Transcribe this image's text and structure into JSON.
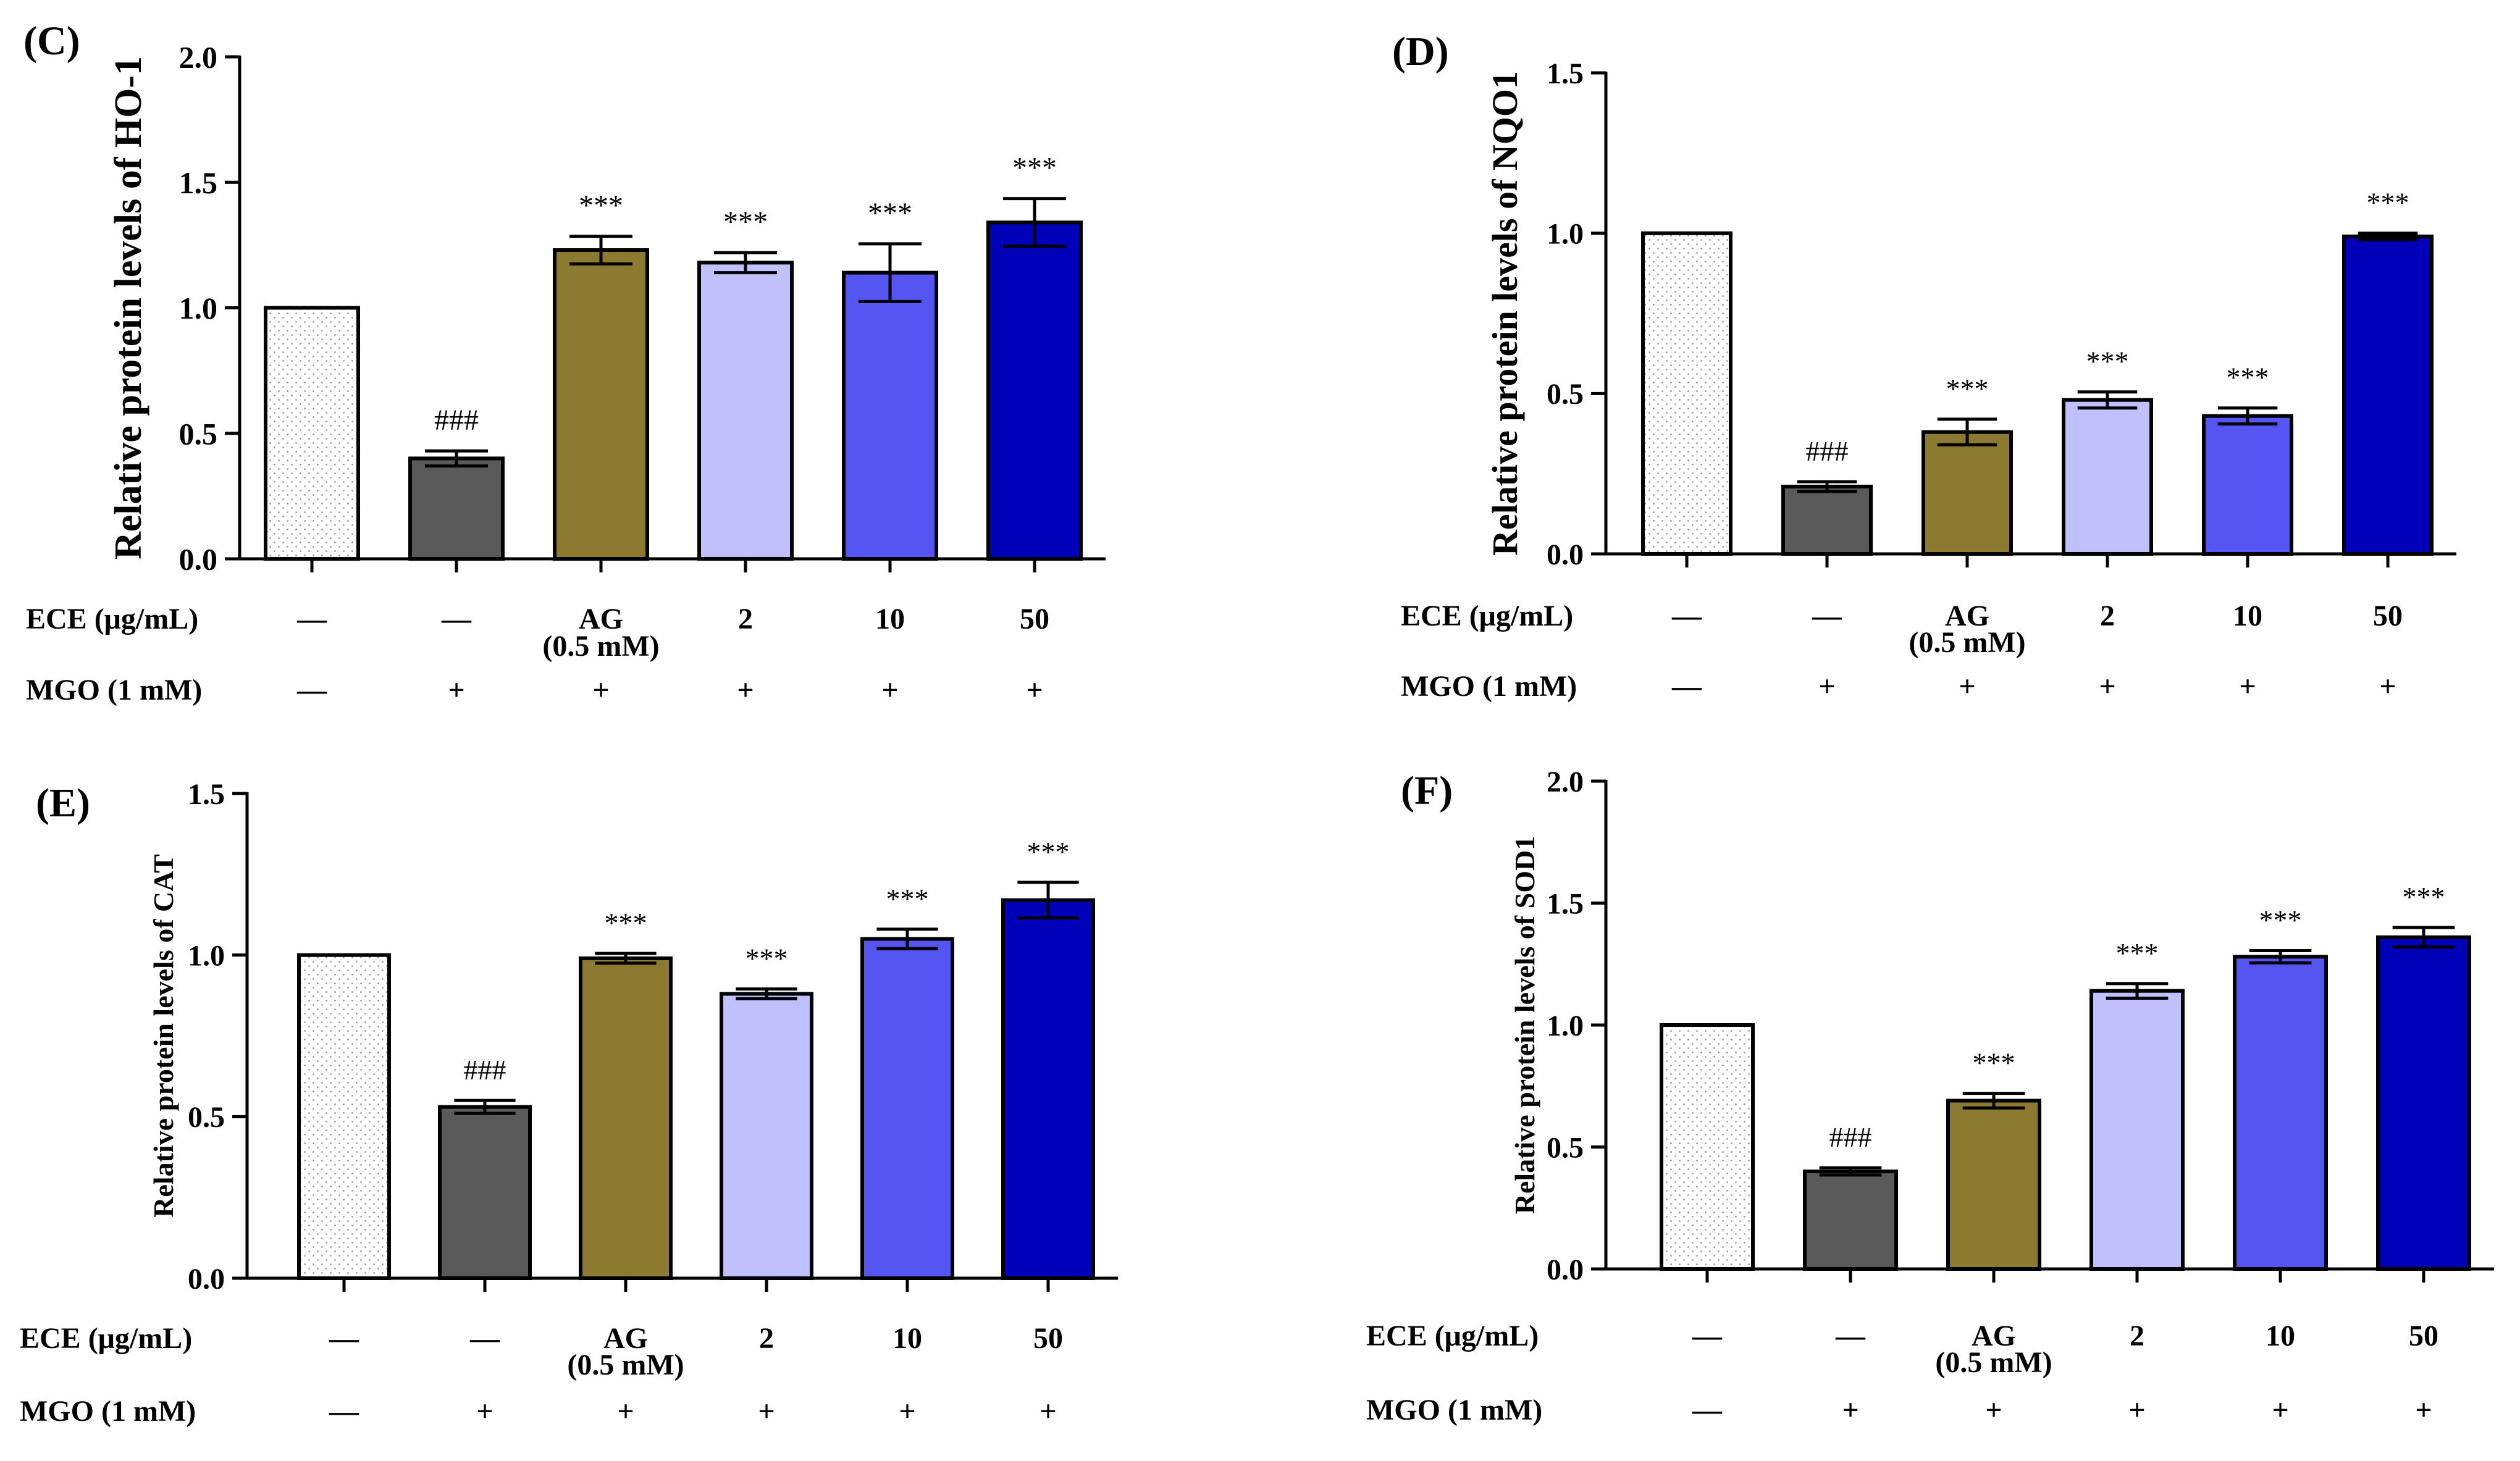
{
  "chart_data": [
    {
      "panel": "(C)",
      "type": "bar",
      "ylabel": "Relative protein levels of HO-1",
      "ylim": [
        0,
        2.0
      ],
      "yticks": [
        "0.0",
        "0.5",
        "1.0",
        "1.5",
        "2.0"
      ],
      "values": [
        1.0,
        0.4,
        1.23,
        1.18,
        1.14,
        1.34
      ],
      "errors": [
        0,
        0.03,
        0.055,
        0.04,
        0.115,
        0.095
      ],
      "annotations": [
        "",
        "###",
        "***",
        "***",
        "***",
        "***"
      ],
      "ece_label": "ECE (μg/mL)",
      "ece": [
        "—",
        "—",
        "AG\n(0.5 mM)",
        "2",
        "10",
        "50"
      ],
      "mgo_label": "MGO (1 mM)",
      "mgo": [
        "—",
        "+",
        "+",
        "+",
        "+",
        "+"
      ]
    },
    {
      "panel": "(D)",
      "type": "bar",
      "ylabel": "Relative protein levels of NQO1",
      "ylim": [
        0,
        1.5
      ],
      "yticks": [
        "0.0",
        "0.5",
        "1.0",
        "1.5"
      ],
      "values": [
        1.0,
        0.21,
        0.38,
        0.48,
        0.43,
        0.99
      ],
      "errors": [
        0,
        0.015,
        0.04,
        0.025,
        0.025,
        0.01
      ],
      "annotations": [
        "",
        "###",
        "***",
        "***",
        "***",
        "***"
      ],
      "ece_label": "ECE (μg/mL)",
      "ece": [
        "—",
        "—",
        "AG\n(0.5 mM)",
        "2",
        "10",
        "50"
      ],
      "mgo_label": "MGO (1 mM)",
      "mgo": [
        "—",
        "+",
        "+",
        "+",
        "+",
        "+"
      ]
    },
    {
      "panel": "(E)",
      "type": "bar",
      "ylabel": "Relative protein levels of CAT",
      "ylim": [
        0,
        1.5
      ],
      "yticks": [
        "0.0",
        "0.5",
        "1.0",
        "1.5"
      ],
      "values": [
        1.0,
        0.53,
        0.99,
        0.88,
        1.05,
        1.17
      ],
      "errors": [
        0,
        0.02,
        0.015,
        0.015,
        0.03,
        0.055
      ],
      "annotations": [
        "",
        "###",
        "***",
        "***",
        "***",
        "***"
      ],
      "ece_label": "ECE (μg/mL)",
      "ece": [
        "—",
        "—",
        "AG\n(0.5 mM)",
        "2",
        "10",
        "50"
      ],
      "mgo_label": "MGO (1 mM)",
      "mgo": [
        "—",
        "+",
        "+",
        "+",
        "+",
        "+"
      ]
    },
    {
      "panel": "(F)",
      "type": "bar",
      "ylabel": "Relative protein levels of SOD1",
      "ylim": [
        0,
        2.0
      ],
      "yticks": [
        "0.0",
        "0.5",
        "1.0",
        "1.5",
        "2.0"
      ],
      "values": [
        1.0,
        0.4,
        0.69,
        1.14,
        1.28,
        1.36
      ],
      "errors": [
        0,
        0.015,
        0.03,
        0.03,
        0.025,
        0.04
      ],
      "annotations": [
        "",
        "###",
        "***",
        "***",
        "***",
        "***"
      ],
      "ece_label": "ECE (μg/mL)",
      "ece": [
        "—",
        "—",
        "AG\n(0.5 mM)",
        "2",
        "10",
        "50"
      ],
      "mgo_label": "MGO (1 mM)",
      "mgo": [
        "—",
        "+",
        "+",
        "+",
        "+",
        "+"
      ]
    }
  ],
  "colors": {
    "control": "#ffffff",
    "mgo": "#5a5a5a",
    "ag": "#8b7a30",
    "ece_2": "#c0c0fc",
    "ece_10": "#5555f2",
    "ece_50": "#0000b8",
    "axis": "#000000"
  }
}
